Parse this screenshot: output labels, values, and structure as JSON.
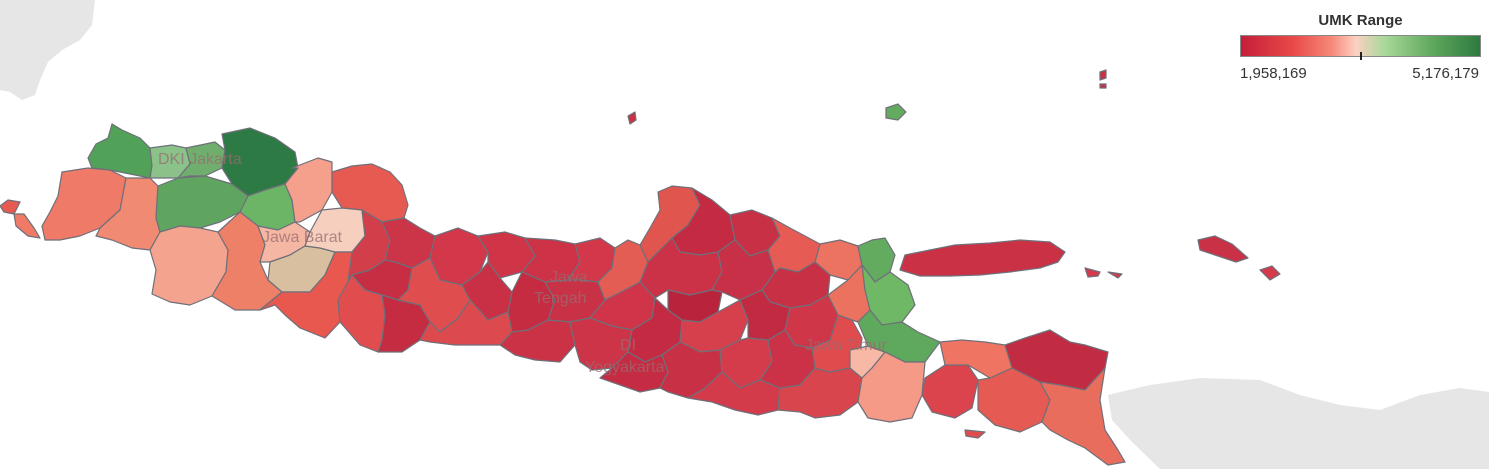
{
  "legend": {
    "title": "UMK Range",
    "min_label": "1,958,169",
    "max_label": "5,176,179",
    "min_value": 1958169,
    "max_value": 5176179,
    "colors": [
      "#c41e3a",
      "#e94a48",
      "#f6897a",
      "#fcd0c2",
      "#a9d89a",
      "#5fa85d",
      "#2e7a40"
    ]
  },
  "map_labels": {
    "dki_jakarta": "DKI Jakarta",
    "jawa_barat": "Jawa Barat",
    "jawa_tengah_1": "Jawa",
    "jawa_tengah_2": "Tengah",
    "di_yogyakarta_1": "DI",
    "di_yogyakarta_2": "Yogyakarta",
    "jawa_timur": "Jawa Timur"
  }
}
